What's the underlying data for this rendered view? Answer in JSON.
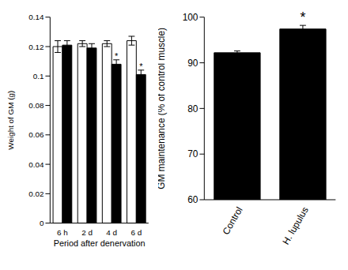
{
  "chart_data": [
    {
      "type": "bar",
      "categories": [
        "6 h",
        "2 d",
        "4 d",
        "6 d"
      ],
      "xlabel": "Period after denervation",
      "ylabel": "Weight of GM  (g)",
      "ylim": [
        0,
        0.14
      ],
      "yticks": [
        0,
        0.02,
        0.04,
        0.06,
        0.08,
        0.1,
        0.12,
        0.14
      ],
      "series": [
        {
          "color": "#ffffff",
          "values": [
            0.12,
            0.122,
            0.122,
            0.124
          ],
          "errors": [
            0.004,
            0.002,
            0.002,
            0.003
          ]
        },
        {
          "color": "#000000",
          "values": [
            0.121,
            0.119,
            0.108,
            0.101
          ],
          "errors": [
            0.003,
            0.003,
            0.003,
            0.003
          ],
          "annotations": [
            null,
            null,
            "*",
            "*"
          ]
        }
      ]
    },
    {
      "type": "bar",
      "categories": [
        "Control",
        "H. lupulus"
      ],
      "ylabel": "GM maintenance (% of control muscle)",
      "ylim": [
        60,
        100
      ],
      "yticks": [
        60,
        70,
        80,
        90,
        100
      ],
      "color": "#000000",
      "values": [
        92.2,
        97.4
      ],
      "errors": [
        0.4,
        0.8
      ],
      "annotations": [
        null,
        "*"
      ]
    }
  ]
}
